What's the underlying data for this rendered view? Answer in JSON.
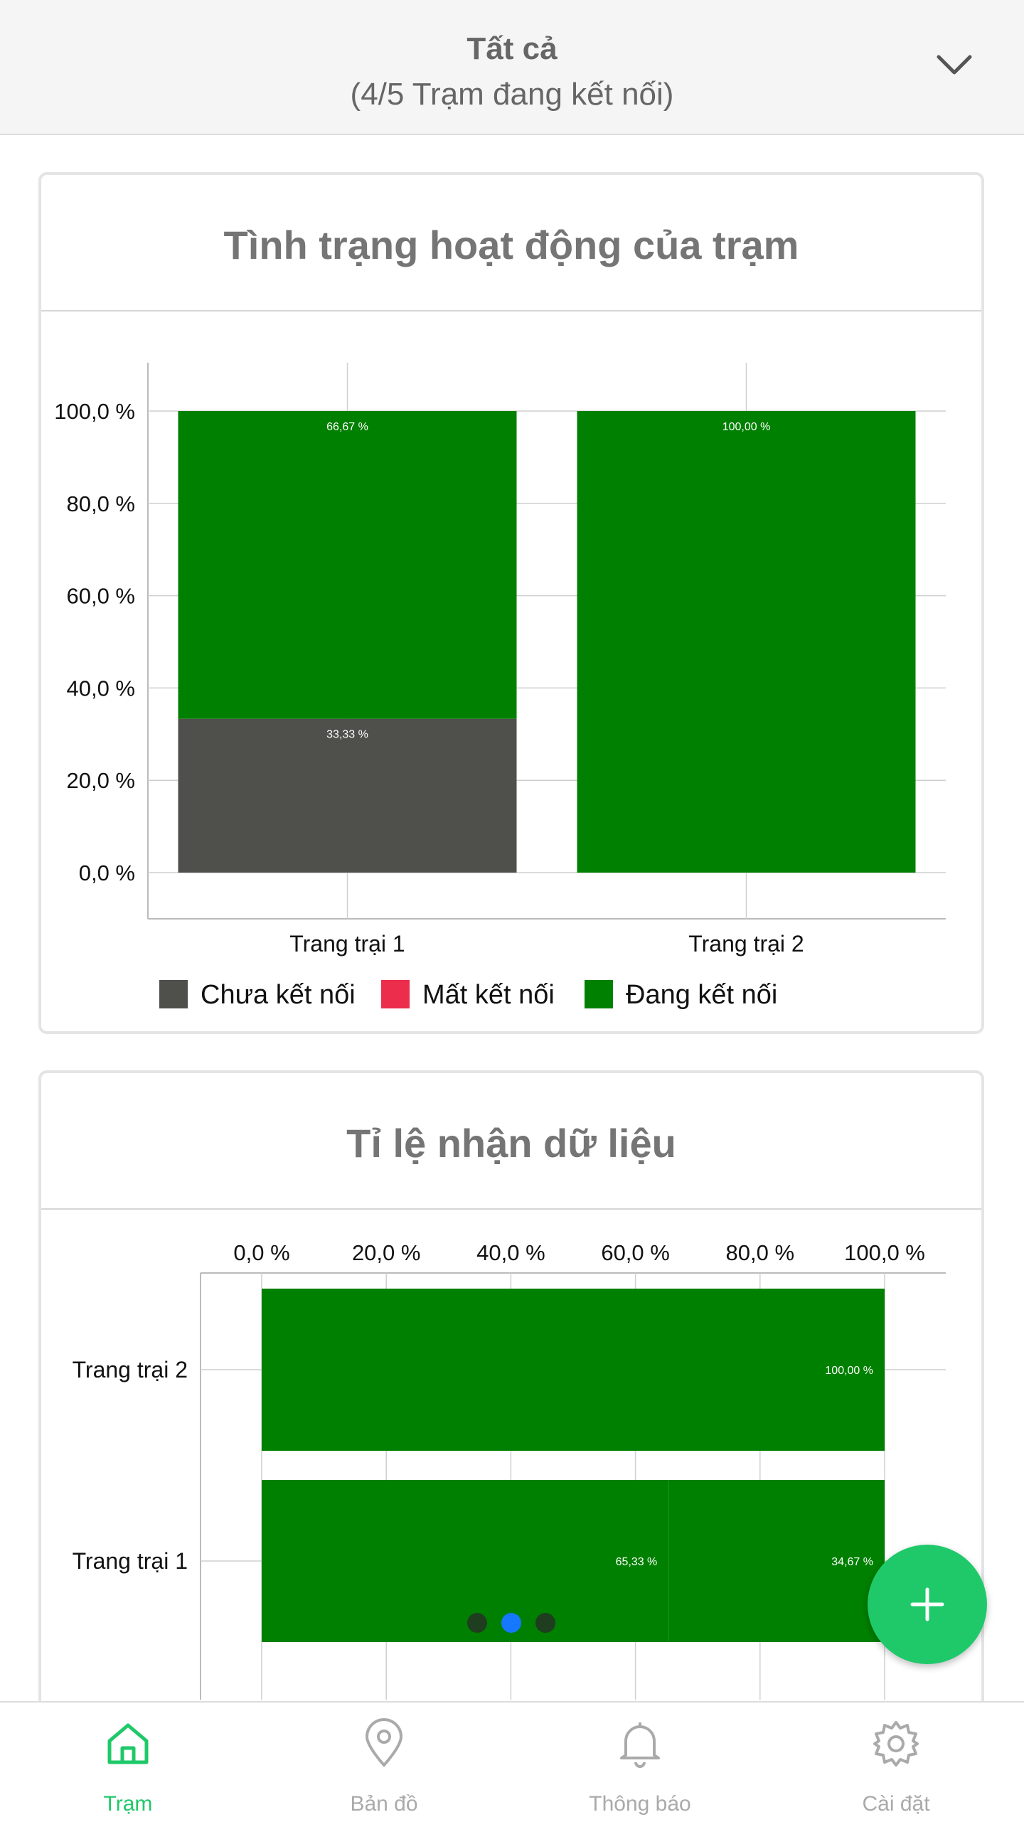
{
  "header": {
    "title": "Tất cả",
    "subtitle": "(4/5 Trạm đang kết nối)"
  },
  "colors": {
    "chua_ket_noi": "#4f4f4b",
    "mat_ket_noi": "#ec2d4b",
    "dang_ket_noi": "#008000",
    "accent": "#1fc96a",
    "page_dot_active": "#1677ff",
    "page_dot_inactive": "#1f3d1f"
  },
  "chart_data": [
    {
      "type": "bar",
      "stacked": true,
      "orientation": "vertical",
      "title": "Tình trạng hoạt động của trạm",
      "categories": [
        "Trang trại 1",
        "Trang trại 2"
      ],
      "series": [
        {
          "name": "Chưa kết nối",
          "values": [
            33.33,
            0
          ],
          "labels": [
            "33,33 %",
            ""
          ]
        },
        {
          "name": "Mất kết nối",
          "values": [
            0,
            0
          ],
          "labels": [
            "",
            ""
          ]
        },
        {
          "name": "Đang kết nối",
          "values": [
            66.67,
            100
          ],
          "labels": [
            "66,67 %",
            "100,00 %"
          ]
        }
      ],
      "ylim": [
        0,
        100
      ],
      "yticks": [
        "0,0 %",
        "20,0 %",
        "40,0 %",
        "60,0 %",
        "80,0 %",
        "100,0 %"
      ],
      "legend": "bottom",
      "grid": true
    },
    {
      "type": "bar",
      "stacked": true,
      "orientation": "horizontal",
      "title": "Tỉ lệ nhận dữ liệu",
      "categories": [
        "Trang trại 2",
        "Trang trại 1"
      ],
      "series": [
        {
          "values": [
            100,
            65.33
          ],
          "labels": [
            "100,00 %",
            "65,33 %"
          ]
        },
        {
          "values": [
            0,
            34.67
          ],
          "labels": [
            "",
            "34,67 %"
          ]
        }
      ],
      "xlim": [
        0,
        100
      ],
      "xticks": [
        "0,0 %",
        "20,0 %",
        "40,0 %",
        "60,0 %",
        "80,0 %",
        "100,0 %"
      ],
      "grid": true
    }
  ],
  "pager": {
    "count": 3,
    "active": 1
  },
  "tabs": [
    {
      "label": "Trạm",
      "icon": "home-icon",
      "active": true
    },
    {
      "label": "Bản đồ",
      "icon": "map-pin-icon",
      "active": false
    },
    {
      "label": "Thông báo",
      "icon": "bell-icon",
      "active": false
    },
    {
      "label": "Cài đặt",
      "icon": "gear-icon",
      "active": false
    }
  ]
}
